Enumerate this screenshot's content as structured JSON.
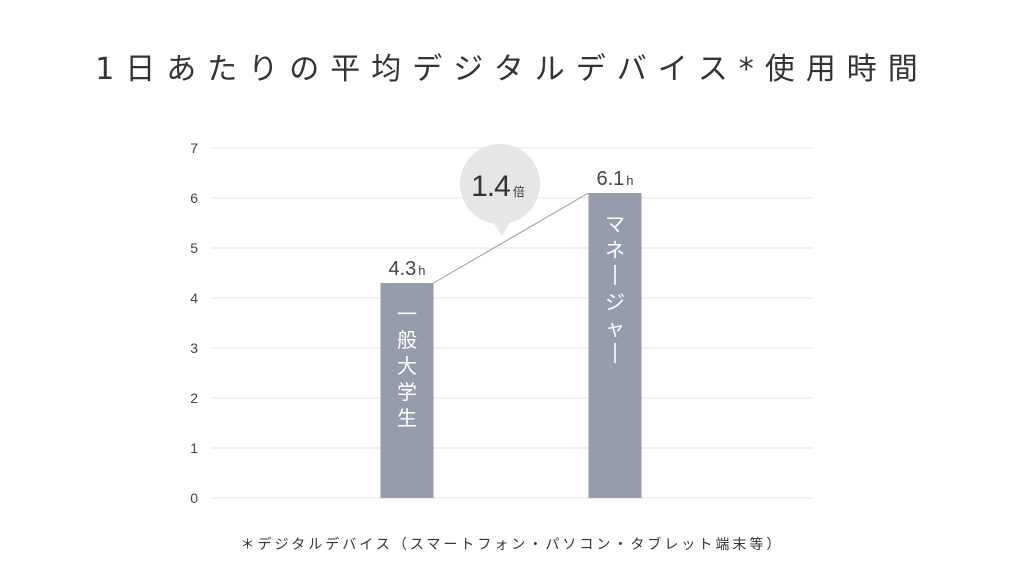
{
  "title": "1日あたりの平均デジタルデバイス*使用時間",
  "footnote": "＊デジタルデバイス（スマートフォン・パソコン・タブレット端末等）",
  "colors": {
    "bar": "#959dad",
    "grid": "#e6e6e6",
    "bubble": "#e6e6e6",
    "connector": "#9a9a9a"
  },
  "chart_data": {
    "type": "bar",
    "categories": [
      "一般大学生",
      "マネージャー"
    ],
    "values": [
      4.3,
      6.1
    ],
    "value_labels": [
      "4.3",
      "6.1"
    ],
    "value_unit": "h",
    "ylim": [
      0,
      7
    ],
    "yticks": [
      0,
      1,
      2,
      3,
      4,
      5,
      6,
      7
    ],
    "grid": true,
    "annotation": {
      "number": "1.4",
      "suffix": "倍"
    }
  }
}
